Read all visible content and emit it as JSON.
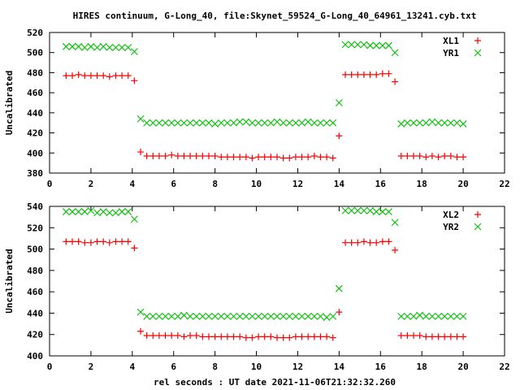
{
  "chart_data": [
    {
      "type": "scatter",
      "title": "HIRES continuum, G-Long_40, file:Skynet_59524_G-Long_40_64961_13241.cyb.txt",
      "xlabel": "",
      "ylabel": "Uncalibrated",
      "xlim": [
        0,
        22
      ],
      "ylim": [
        380,
        520
      ],
      "xticks": [
        "0",
        "2",
        "4",
        "6",
        "8",
        "10",
        "12",
        "14",
        "16",
        "18",
        "20",
        "22"
      ],
      "yticks": [
        "380",
        "400",
        "420",
        "440",
        "460",
        "480",
        "500",
        "520"
      ],
      "legend_position": "top-right",
      "x_start": 0.8,
      "x_step": 0.3,
      "series": [
        {
          "name": "XL1",
          "marker": "plus",
          "color": "#ff0000",
          "values": [
            477,
            477,
            478,
            477,
            477,
            477,
            477,
            476,
            477,
            477,
            477,
            472,
            401,
            397,
            397,
            397,
            397,
            398,
            397,
            397,
            397,
            397,
            397,
            397,
            397,
            396,
            396,
            396,
            396,
            396,
            395,
            396,
            396,
            396,
            396,
            395,
            395,
            396,
            396,
            396,
            397,
            396,
            396,
            395,
            417,
            478,
            478,
            478,
            478,
            478,
            478,
            479,
            479,
            471,
            397,
            397,
            397,
            397,
            396,
            397,
            396,
            397,
            397,
            396,
            396
          ]
        },
        {
          "name": "YR1",
          "marker": "cross",
          "color": "#00c000",
          "values": [
            506,
            506,
            506,
            505,
            506,
            505,
            506,
            505,
            505,
            505,
            505,
            501,
            434,
            430,
            430,
            430,
            430,
            430,
            430,
            430,
            430,
            430,
            430,
            430,
            429,
            430,
            430,
            430,
            431,
            431,
            430,
            430,
            430,
            430,
            431,
            430,
            430,
            430,
            430,
            431,
            430,
            430,
            430,
            430,
            450,
            508,
            508,
            508,
            508,
            507,
            507,
            507,
            507,
            500,
            429,
            430,
            430,
            430,
            430,
            431,
            430,
            430,
            430,
            430,
            429
          ]
        }
      ]
    },
    {
      "type": "scatter",
      "title": "",
      "xlabel": "rel seconds : UT date 2021-11-06T21:32:32.260",
      "ylabel": "Uncalibrated",
      "xlim": [
        0,
        22
      ],
      "ylim": [
        400,
        540
      ],
      "xticks": [
        "0",
        "2",
        "4",
        "6",
        "8",
        "10",
        "12",
        "14",
        "16",
        "18",
        "20",
        "22"
      ],
      "yticks": [
        "400",
        "420",
        "440",
        "460",
        "480",
        "500",
        "520",
        "540"
      ],
      "legend_position": "top-right",
      "x_start": 0.8,
      "x_step": 0.3,
      "series": [
        {
          "name": "XL2",
          "marker": "plus",
          "color": "#ff0000",
          "values": [
            507,
            507,
            507,
            506,
            506,
            507,
            507,
            506,
            507,
            507,
            507,
            501,
            423,
            419,
            419,
            419,
            419,
            419,
            419,
            418,
            419,
            419,
            418,
            418,
            418,
            418,
            418,
            418,
            418,
            417,
            417,
            418,
            418,
            418,
            417,
            417,
            417,
            418,
            418,
            418,
            418,
            418,
            418,
            417,
            441,
            506,
            506,
            506,
            507,
            506,
            506,
            507,
            507,
            499,
            419,
            419,
            419,
            419,
            418,
            418,
            418,
            418,
            418,
            418,
            418
          ]
        },
        {
          "name": "YR2",
          "marker": "cross",
          "color": "#00c000",
          "values": [
            535,
            535,
            535,
            535,
            536,
            534,
            535,
            534,
            534,
            535,
            535,
            528,
            441,
            437,
            437,
            437,
            437,
            437,
            437,
            438,
            437,
            437,
            437,
            437,
            437,
            437,
            437,
            437,
            437,
            437,
            437,
            437,
            437,
            437,
            437,
            437,
            437,
            437,
            437,
            437,
            437,
            437,
            436,
            437,
            463,
            536,
            536,
            536,
            536,
            536,
            535,
            535,
            535,
            525,
            437,
            437,
            437,
            438,
            437,
            437,
            437,
            437,
            437,
            437,
            437
          ]
        }
      ]
    }
  ]
}
